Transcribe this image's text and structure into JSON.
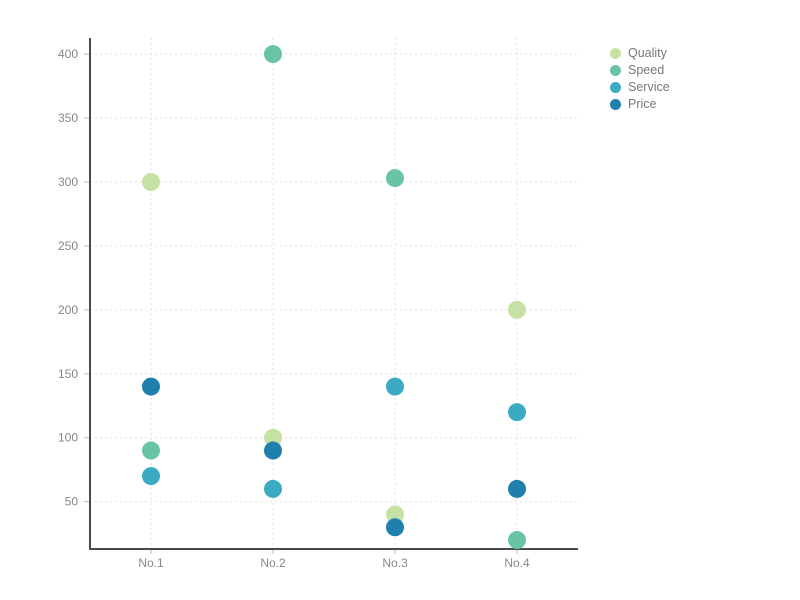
{
  "chart_data": {
    "type": "scatter",
    "title": "",
    "xlabel": "",
    "ylabel": "",
    "categories": [
      "No.1",
      "No.2",
      "No.3",
      "No.4"
    ],
    "series": [
      {
        "name": "Quality",
        "color": "#c5e2a4",
        "values": [
          300,
          100,
          40,
          200
        ]
      },
      {
        "name": "Speed",
        "color": "#68c4a5",
        "values": [
          90,
          400,
          303,
          20
        ]
      },
      {
        "name": "Service",
        "color": "#3aabc3",
        "values": [
          70,
          60,
          140,
          120
        ]
      },
      {
        "name": "Price",
        "color": "#1f7fad",
        "values": [
          140,
          90,
          30,
          60
        ]
      }
    ],
    "yticks": [
      50,
      100,
      150,
      200,
      250,
      300,
      350,
      400
    ],
    "ylim": [
      13,
      411
    ],
    "grid": true,
    "grid_style": "dashed",
    "legend_position": "top-right"
  },
  "style": {
    "background_color": "#ffffff",
    "axis_color": "#4a4a4a",
    "grid_color": "#e2e2e2",
    "tick_mark_color": "#b9b9b9",
    "tick_label_color": "#878787",
    "legend_text_color": "#75787b",
    "marker_radius": 9
  }
}
